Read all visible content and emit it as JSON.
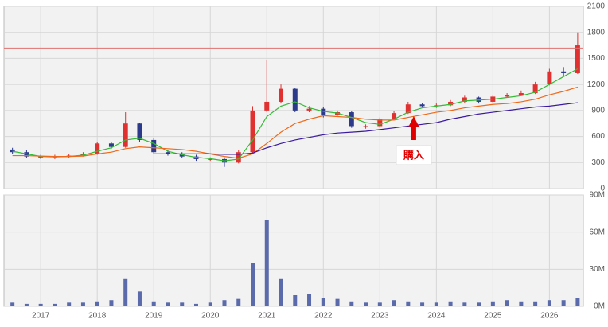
{
  "chart_data": [
    {
      "type": "candlestick",
      "x": [
        2016.5,
        2016.75,
        2017.0,
        2017.25,
        2017.5,
        2017.75,
        2018.0,
        2018.25,
        2018.5,
        2018.75,
        2019.0,
        2019.25,
        2019.5,
        2019.75,
        2020.0,
        2020.25,
        2020.5,
        2020.75,
        2021.0,
        2021.25,
        2021.5,
        2021.75,
        2022.0,
        2022.25,
        2022.5,
        2022.75,
        2023.0,
        2023.25,
        2023.5,
        2023.75,
        2024.0,
        2024.25,
        2024.5,
        2024.75,
        2025.0,
        2025.25,
        2025.5,
        2025.75,
        2026.0,
        2026.25,
        2026.5
      ],
      "open": [
        450,
        420,
        370,
        360,
        370,
        380,
        400,
        520,
        480,
        750,
        560,
        420,
        400,
        370,
        340,
        340,
        300,
        420,
        900,
        1000,
        1150,
        900,
        920,
        850,
        880,
        720,
        720,
        800,
        870,
        970,
        950,
        960,
        1000,
        1050,
        1000,
        1060,
        1080,
        1100,
        1200,
        1350,
        1330
      ],
      "high": [
        470,
        440,
        390,
        390,
        400,
        420,
        540,
        540,
        880,
        760,
        580,
        440,
        420,
        390,
        360,
        360,
        440,
        950,
        1480,
        1200,
        1160,
        950,
        940,
        900,
        890,
        740,
        820,
        890,
        1000,
        990,
        980,
        1020,
        1070,
        1060,
        1080,
        1100,
        1130,
        1230,
        1380,
        1400,
        1800
      ],
      "low": [
        400,
        350,
        340,
        340,
        350,
        370,
        390,
        460,
        470,
        540,
        400,
        380,
        350,
        320,
        320,
        250,
        290,
        410,
        880,
        980,
        880,
        880,
        820,
        840,
        700,
        690,
        700,
        790,
        860,
        930,
        930,
        950,
        990,
        980,
        990,
        1050,
        1070,
        1090,
        1190,
        1300,
        1320
      ],
      "close": [
        420,
        370,
        360,
        370,
        380,
        400,
        520,
        480,
        750,
        560,
        420,
        400,
        370,
        340,
        340,
        300,
        420,
        900,
        1000,
        1150,
        900,
        920,
        850,
        880,
        720,
        720,
        800,
        870,
        970,
        950,
        960,
        1000,
        1050,
        1000,
        1060,
        1080,
        1100,
        1200,
        1350,
        1330,
        1650
      ],
      "up_color": "#e03030",
      "down_color": "#2c3a8c",
      "series": [
        {
          "color": "#33bb33",
          "values": [
            430,
            400,
            370,
            365,
            370,
            385,
            430,
            470,
            560,
            580,
            520,
            430,
            390,
            360,
            345,
            320,
            340,
            560,
            830,
            950,
            1000,
            930,
            890,
            870,
            820,
            760,
            740,
            800,
            880,
            930,
            950,
            970,
            1010,
            1020,
            1030,
            1050,
            1070,
            1110,
            1200,
            1290,
            1380
          ]
        },
        {
          "color": "#ee6a1a",
          "values": [
            380,
            380,
            375,
            370,
            370,
            375,
            400,
            420,
            460,
            480,
            470,
            460,
            450,
            430,
            400,
            370,
            350,
            400,
            520,
            650,
            750,
            800,
            840,
            830,
            820,
            800,
            790,
            790,
            820,
            850,
            880,
            900,
            930,
            950,
            970,
            980,
            1000,
            1030,
            1080,
            1120,
            1170
          ]
        },
        {
          "color": "#3a1aa0",
          "values": [
            null,
            null,
            null,
            null,
            null,
            null,
            null,
            null,
            null,
            null,
            400,
            400,
            400,
            400,
            400,
            395,
            395,
            410,
            470,
            520,
            560,
            590,
            620,
            640,
            650,
            660,
            680,
            700,
            720,
            740,
            760,
            800,
            830,
            860,
            880,
            900,
            920,
            940,
            950,
            970,
            990
          ]
        }
      ],
      "hline": {
        "value": 1620,
        "color": "#e07070"
      },
      "annotation": {
        "text": "購入",
        "x": 2023.6,
        "color": "#e00000"
      },
      "xlim": [
        2016.35,
        2026.6
      ],
      "xticks": [
        2017,
        2018,
        2019,
        2020,
        2021,
        2022,
        2023,
        2024,
        2025,
        2026
      ],
      "ylim": [
        0,
        2100
      ],
      "yticks": [
        0,
        300,
        600,
        900,
        1200,
        1500,
        1800,
        2100
      ],
      "grid": true
    },
    {
      "type": "bar",
      "x": [
        2016.5,
        2016.75,
        2017.0,
        2017.25,
        2017.5,
        2017.75,
        2018.0,
        2018.25,
        2018.5,
        2018.75,
        2019.0,
        2019.25,
        2019.5,
        2019.75,
        2020.0,
        2020.25,
        2020.5,
        2020.75,
        2021.0,
        2021.25,
        2021.5,
        2021.75,
        2022.0,
        2022.25,
        2022.5,
        2022.75,
        2023.0,
        2023.25,
        2023.5,
        2023.75,
        2024.0,
        2024.25,
        2024.5,
        2024.75,
        2025.0,
        2025.25,
        2025.5,
        2025.75,
        2026.0,
        2026.25,
        2026.5
      ],
      "values": [
        3,
        2,
        2,
        2,
        3,
        3,
        4,
        5,
        22,
        12,
        4,
        3,
        3,
        2,
        3,
        5,
        6,
        35,
        70,
        22,
        9,
        10,
        7,
        6,
        4,
        3,
        3,
        5,
        4,
        3,
        3,
        4,
        3,
        3,
        4,
        5,
        4,
        4,
        5,
        5,
        7
      ],
      "color": "#5a6aaa",
      "xlim": [
        2016.35,
        2026.6
      ],
      "xticks": [
        2017,
        2018,
        2019,
        2020,
        2021,
        2022,
        2023,
        2024,
        2025,
        2026
      ],
      "ylim": [
        0,
        90
      ],
      "yticks": [
        {
          "value": 0,
          "label": "0M"
        },
        {
          "value": 30,
          "label": "30M"
        },
        {
          "value": 60,
          "label": "60M"
        },
        {
          "value": 90,
          "label": "90M"
        }
      ],
      "grid": true
    }
  ]
}
